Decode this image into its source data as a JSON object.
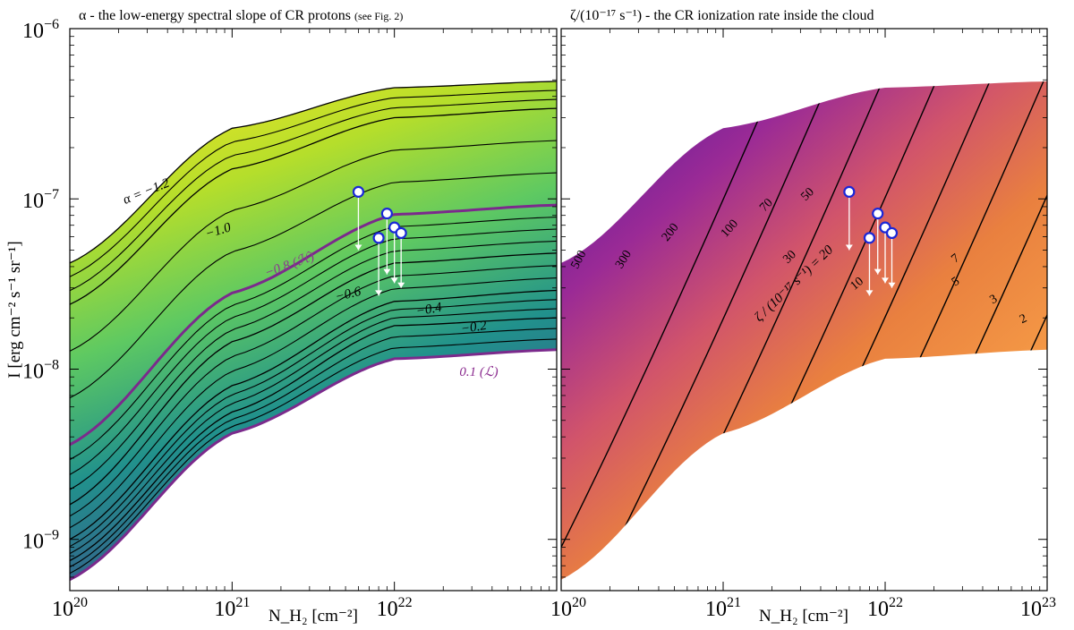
{
  "figure": {
    "ylabel": "I [erg cm⁻² s⁻¹ sr⁻¹]",
    "xlabel": "N_H₂ [cm⁻²]"
  },
  "chart_data": [
    {
      "type": "heatmap",
      "title": "α - the low-energy spectral slope of CR protons",
      "title_note": "(see Fig. 2)",
      "xlabel": "N_H₂ [cm⁻²]",
      "ylabel": "I [erg cm⁻² s⁻¹ sr⁻¹]",
      "xscale": "log",
      "yscale": "log",
      "xlim": [
        1e+20,
        1e+23
      ],
      "ylim": [
        5e-10,
        1e-06
      ],
      "x_ticks": [
        "10^20",
        "10^21",
        "10^22"
      ],
      "y_ticks": [
        "10^-6",
        "10^-7",
        "10^-8",
        "10^-9"
      ],
      "colormap": "viridis",
      "colors": {
        "high": "#fde725",
        "mid": "#5ec962",
        "low": "#21918c",
        "dark": "#3b528b",
        "highlight": "#7b2a8c"
      },
      "contours": [
        {
          "alpha": -1.2,
          "label": "α = −1.2",
          "y_at_x": [
            [
              1e+20,
              4.2e-08
            ],
            [
              1e+21,
              2.6e-07
            ],
            [
              1e+22,
              4.5e-07
            ],
            [
              1e+23,
              4.9e-07
            ]
          ]
        },
        {
          "alpha": -1.0,
          "label": "−1.0",
          "y_at_x": [
            [
              1e+20,
              2.4e-08
            ],
            [
              1e+21,
              1.5e-07
            ],
            [
              1e+22,
              3e-07
            ],
            [
              1e+23,
              3.4e-07
            ]
          ]
        },
        {
          "alpha": -0.8,
          "label": "−0.8 (ℋ)",
          "highlight": true,
          "y_at_x": [
            [
              1e+20,
              3.6e-09
            ],
            [
              1e+21,
              2.8e-08
            ],
            [
              1e+22,
              8.1e-08
            ],
            [
              1e+23,
              9.2e-08
            ]
          ]
        },
        {
          "alpha": -0.6,
          "label": "−0.6",
          "y_at_x": [
            [
              1e+20,
              1.6e-09
            ],
            [
              1e+21,
              1.45e-08
            ],
            [
              1e+22,
              4.2e-08
            ],
            [
              1e+23,
              4.8e-08
            ]
          ]
        },
        {
          "alpha": -0.4,
          "label": "−0.4",
          "y_at_x": [
            [
              1e+20,
              1e-09
            ],
            [
              1e+21,
              8e-09
            ],
            [
              1e+22,
              2.5e-08
            ],
            [
              1e+23,
              2.9e-08
            ]
          ]
        },
        {
          "alpha": -0.2,
          "label": "−0.2",
          "y_at_x": [
            [
              1e+20,
              7.5e-10
            ],
            [
              1e+21,
              5.6e-09
            ],
            [
              1e+22,
              1.8e-08
            ],
            [
              1e+23,
              2e-08
            ]
          ]
        },
        {
          "alpha": 0.1,
          "label": "0.1 (ℒ)",
          "highlight": true,
          "y_at_x": [
            [
              1e+20,
              5.8e-10
            ],
            [
              1e+21,
              4.2e-09
            ],
            [
              1e+22,
              1.15e-08
            ],
            [
              1e+23,
              1.3e-08
            ]
          ]
        }
      ],
      "data_points": [
        {
          "x": 6e+21,
          "y": 1.1e-07,
          "upper_limit_to": 5e-08
        },
        {
          "x": 8e+21,
          "y": 5.9e-08,
          "upper_limit_to": 2.7e-08
        },
        {
          "x": 9e+21,
          "y": 8.2e-08,
          "upper_limit_to": 3.6e-08
        },
        {
          "x": 1e+22,
          "y": 6.8e-08,
          "upper_limit_to": 3.2e-08
        },
        {
          "x": 1.1e+22,
          "y": 6.3e-08,
          "upper_limit_to": 3e-08
        }
      ]
    },
    {
      "type": "heatmap",
      "title": "ζ/(10⁻¹⁷ s⁻¹) - the CR ionization rate inside the cloud",
      "xlabel": "N_H₂ [cm⁻²]",
      "xscale": "log",
      "yscale": "log",
      "xlim": [
        1e+20,
        1e+23
      ],
      "ylim": [
        5e-10,
        1e-06
      ],
      "x_ticks": [
        "10^20",
        "10^21",
        "10^22",
        "10^23"
      ],
      "colormap": "plasma",
      "colors": {
        "high": "#6a1c9a",
        "mid": "#d1546b",
        "low": "#f59a46",
        "lowest": "#f3e74a"
      },
      "contour_label_title": "ζ / (10⁻¹⁷ s⁻¹) = 20",
      "contour_levels": [
        500,
        300,
        200,
        100,
        70,
        50,
        30,
        20,
        10,
        7,
        5,
        3,
        2
      ],
      "contour_labels": [
        "500",
        "300",
        "200",
        "100",
        "70",
        "50",
        "30",
        "10",
        "7",
        "5",
        "3",
        "2"
      ],
      "data_points": [
        {
          "x": 6e+21,
          "y": 1.1e-07,
          "upper_limit_to": 5e-08
        },
        {
          "x": 8e+21,
          "y": 5.9e-08,
          "upper_limit_to": 2.7e-08
        },
        {
          "x": 9e+21,
          "y": 8.2e-08,
          "upper_limit_to": 3.6e-08
        },
        {
          "x": 1e+22,
          "y": 6.8e-08,
          "upper_limit_to": 3.2e-08
        },
        {
          "x": 1.1e+22,
          "y": 6.3e-08,
          "upper_limit_to": 3e-08
        }
      ]
    }
  ]
}
